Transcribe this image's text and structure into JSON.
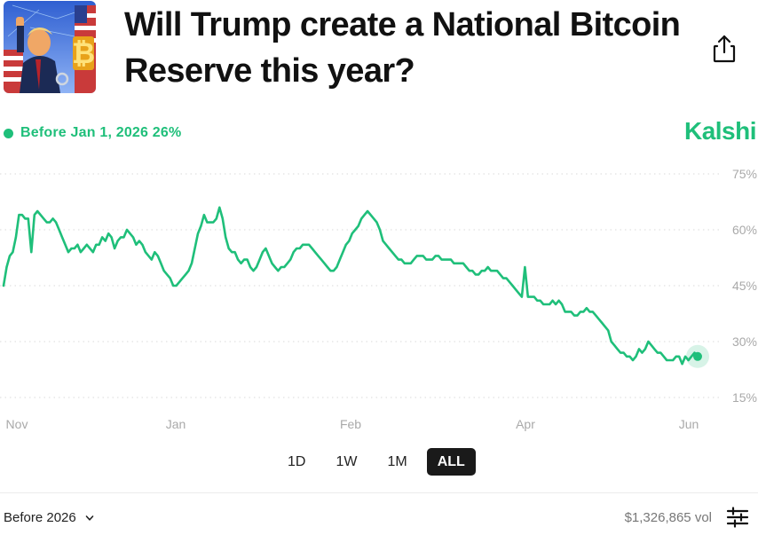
{
  "header": {
    "title_line1": "Will Trump create a National Bitcoin",
    "title_line2": "Reserve this year?",
    "share_icon": "share-icon",
    "thumbnail_icon": "trump-bitcoin-thumbnail"
  },
  "legend": {
    "label": "Before Jan 1, 2026 26%",
    "color": "#1fbf7a"
  },
  "brand": {
    "name": "Kalshi",
    "color": "#1fbf7a"
  },
  "ranges": {
    "items": [
      "1D",
      "1W",
      "1M",
      "ALL"
    ],
    "active": "ALL"
  },
  "footer": {
    "select_label": "Before 2026",
    "volume": "$1,326,865 vol",
    "filter_icon": "sliders-icon"
  },
  "chart_data": {
    "type": "line",
    "title": "",
    "xlabel": "",
    "ylabel": "",
    "x_ticks": [
      "Nov",
      "Jan",
      "Feb",
      "Apr",
      "Jun"
    ],
    "y_ticks": [
      "75%",
      "60%",
      "45%",
      "30%",
      "15%"
    ],
    "ylim": [
      15,
      75
    ],
    "grid": true,
    "axis_side": "right",
    "series": [
      {
        "values": [
          45,
          50,
          53,
          54,
          58,
          64,
          64,
          63,
          63,
          54,
          64,
          65,
          64,
          63,
          62,
          62,
          63,
          62,
          60,
          58,
          56,
          54,
          55,
          55,
          56,
          54,
          55,
          56,
          55,
          54,
          56,
          56,
          58,
          57,
          59,
          58,
          55,
          57,
          58,
          58,
          60,
          59,
          58,
          56,
          57,
          56,
          54,
          53,
          52,
          54,
          53,
          51,
          49,
          48,
          47,
          45,
          45,
          46,
          47,
          48,
          49,
          51,
          55,
          59,
          61,
          64,
          62,
          62,
          62,
          63,
          66,
          63,
          58,
          55,
          54,
          54,
          52,
          51,
          52,
          52,
          50,
          49,
          50,
          52,
          54,
          55,
          53,
          51,
          50,
          49,
          50,
          50,
          51,
          52,
          54,
          55,
          55,
          56,
          56,
          56,
          55,
          54,
          53,
          52,
          51,
          50,
          49,
          49,
          50,
          52,
          54,
          56,
          57,
          59,
          60,
          61,
          63,
          64,
          65,
          64,
          63,
          62,
          60,
          57,
          56,
          55,
          54,
          53,
          52,
          52,
          51,
          51,
          51,
          52,
          53,
          53,
          53,
          52,
          52,
          52,
          53,
          53,
          52,
          52,
          52,
          52,
          51,
          51,
          51,
          51,
          50,
          49,
          49,
          48,
          48,
          49,
          49,
          50,
          49,
          49,
          49,
          48,
          47,
          47,
          46,
          45,
          44,
          43,
          42,
          50,
          42,
          42,
          42,
          41,
          41,
          40,
          40,
          40,
          41,
          40,
          41,
          40,
          38,
          38,
          38,
          37,
          37,
          38,
          38,
          39,
          38,
          38,
          37,
          36,
          35,
          34,
          33,
          30,
          29,
          28,
          27,
          27,
          26,
          26,
          25,
          26,
          28,
          27,
          28,
          30,
          29,
          28,
          27,
          27,
          26,
          25,
          25,
          25,
          26,
          26,
          24,
          26,
          25,
          26,
          27,
          26
        ]
      }
    ],
    "line_color": "#1fbf7a"
  }
}
